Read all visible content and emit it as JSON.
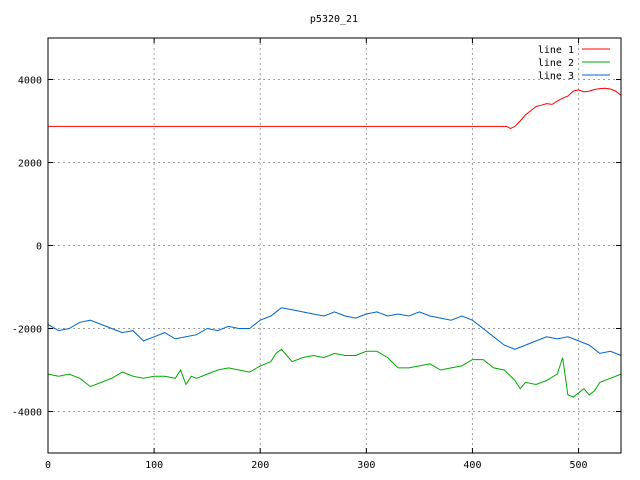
{
  "chart_data": {
    "type": "line",
    "title": "p5320_21",
    "xlabel": "",
    "ylabel": "",
    "xlim": [
      0,
      540
    ],
    "ylim": [
      -5000,
      5000
    ],
    "xticks": [
      0,
      100,
      200,
      300,
      400,
      500
    ],
    "yticks": [
      -4000,
      -2000,
      0,
      2000,
      4000
    ],
    "grid": true,
    "legend_position": "top-right",
    "series": [
      {
        "name": "line 1",
        "color": "#ff0000",
        "x": [
          0,
          100,
          200,
          300,
          400,
          432,
          436,
          440,
          445,
          450,
          455,
          460,
          465,
          470,
          475,
          480,
          485,
          490,
          495,
          500,
          505,
          510,
          515,
          520,
          525,
          530,
          535,
          540
        ],
        "y": [
          2870,
          2870,
          2870,
          2870,
          2870,
          2870,
          2820,
          2870,
          3000,
          3150,
          3250,
          3350,
          3380,
          3420,
          3400,
          3480,
          3550,
          3600,
          3720,
          3750,
          3700,
          3720,
          3760,
          3780,
          3790,
          3770,
          3720,
          3620
        ]
      },
      {
        "name": "line 2",
        "color": "#00aa00",
        "x": [
          0,
          10,
          20,
          30,
          40,
          50,
          60,
          70,
          80,
          90,
          100,
          110,
          120,
          125,
          130,
          135,
          140,
          150,
          160,
          170,
          180,
          190,
          200,
          210,
          215,
          220,
          225,
          230,
          240,
          250,
          260,
          270,
          280,
          290,
          300,
          310,
          320,
          330,
          340,
          350,
          360,
          370,
          380,
          390,
          400,
          410,
          420,
          430,
          440,
          445,
          450,
          460,
          470,
          480,
          485,
          490,
          495,
          500,
          505,
          510,
          515,
          520,
          530,
          540
        ],
        "y": [
          -3100,
          -3150,
          -3100,
          -3200,
          -3400,
          -3300,
          -3200,
          -3050,
          -3150,
          -3200,
          -3150,
          -3150,
          -3200,
          -3000,
          -3350,
          -3150,
          -3200,
          -3100,
          -3000,
          -2950,
          -3000,
          -3050,
          -2900,
          -2800,
          -2600,
          -2500,
          -2650,
          -2800,
          -2700,
          -2650,
          -2700,
          -2600,
          -2650,
          -2650,
          -2550,
          -2550,
          -2700,
          -2950,
          -2950,
          -2900,
          -2850,
          -3000,
          -2950,
          -2900,
          -2750,
          -2750,
          -2950,
          -3000,
          -3250,
          -3450,
          -3300,
          -3350,
          -3250,
          -3100,
          -2700,
          -3600,
          -3650,
          -3550,
          -3450,
          -3600,
          -3500,
          -3300,
          -3200,
          -3100
        ]
      },
      {
        "name": "line 3",
        "color": "#0066cc",
        "x": [
          0,
          10,
          20,
          30,
          40,
          50,
          60,
          70,
          80,
          90,
          100,
          110,
          120,
          130,
          140,
          150,
          160,
          170,
          180,
          190,
          200,
          210,
          220,
          230,
          240,
          250,
          260,
          270,
          280,
          290,
          300,
          310,
          320,
          330,
          340,
          350,
          360,
          370,
          380,
          390,
          400,
          410,
          420,
          430,
          440,
          450,
          460,
          470,
          480,
          490,
          500,
          510,
          520,
          530,
          540
        ],
        "y": [
          -1900,
          -2050,
          -2000,
          -1850,
          -1800,
          -1900,
          -2000,
          -2100,
          -2050,
          -2300,
          -2200,
          -2100,
          -2250,
          -2200,
          -2150,
          -2000,
          -2050,
          -1950,
          -2000,
          -2000,
          -1800,
          -1700,
          -1500,
          -1550,
          -1600,
          -1650,
          -1700,
          -1600,
          -1700,
          -1750,
          -1650,
          -1600,
          -1700,
          -1650,
          -1700,
          -1600,
          -1700,
          -1750,
          -1800,
          -1700,
          -1800,
          -2000,
          -2200,
          -2400,
          -2500,
          -2400,
          -2300,
          -2200,
          -2250,
          -2200,
          -2300,
          -2400,
          -2600,
          -2550,
          -2650
        ]
      }
    ]
  }
}
